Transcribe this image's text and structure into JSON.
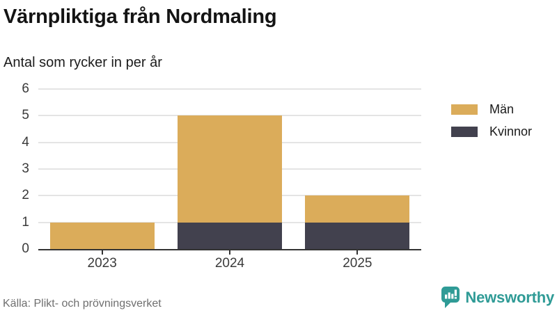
{
  "chart_data": {
    "type": "bar",
    "stacked": true,
    "title": "Värnpliktiga från Nordmaling",
    "subtitle": "Antal som rycker in per år",
    "categories": [
      "2023",
      "2024",
      "2025"
    ],
    "series": [
      {
        "name": "Män",
        "color": "#dbac5a",
        "values": [
          1,
          4,
          1
        ]
      },
      {
        "name": "Kvinnor",
        "color": "#42414e",
        "values": [
          0,
          1,
          1
        ]
      }
    ],
    "stack_bottom_to_top": [
      "Kvinnor",
      "Män"
    ],
    "totals": [
      1,
      5,
      2
    ],
    "xlabel": "",
    "ylabel": "",
    "ylim": [
      0,
      6
    ],
    "yticks": [
      0,
      1,
      2,
      3,
      4,
      5,
      6
    ],
    "grid": "horizontal",
    "legend_position": "top-right"
  },
  "colors": {
    "axis": "#333333",
    "gridline": "#e4e4e4",
    "brand_teal": "#2f9b96",
    "text": "#1a1a1a",
    "muted_text": "#6f6f6f"
  },
  "footer": {
    "source": "Källa: Plikt- och prövningsverket",
    "brand": "Newsworthy",
    "brand_icon": "newsworthy-speech-bubble-bar-chart-icon"
  }
}
